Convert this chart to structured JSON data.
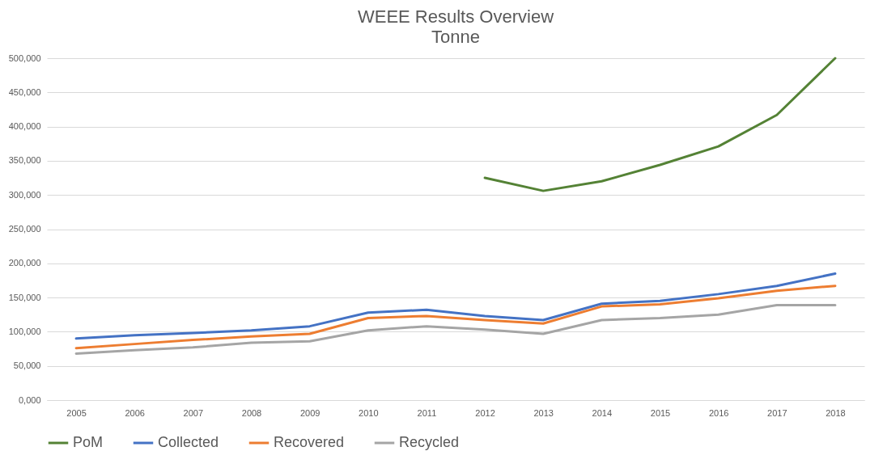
{
  "chart_data": {
    "type": "line",
    "title": "WEEE Results Overview",
    "subtitle": "Tonne",
    "categories": [
      "2005",
      "2006",
      "2007",
      "2008",
      "2009",
      "2010",
      "2011",
      "2012",
      "2013",
      "2014",
      "2015",
      "2016",
      "2017",
      "2018"
    ],
    "series": [
      {
        "name": "PoM",
        "color": "#548235",
        "values": [
          null,
          null,
          null,
          null,
          null,
          null,
          null,
          325000,
          306000,
          320000,
          344000,
          371000,
          417000,
          500000
        ]
      },
      {
        "name": "Collected",
        "color": "#4472c4",
        "values": [
          90000,
          95000,
          98000,
          102000,
          108000,
          128000,
          132000,
          123000,
          117000,
          141000,
          145000,
          155000,
          167000,
          185000
        ]
      },
      {
        "name": "Recovered",
        "color": "#ed7d31",
        "values": [
          76000,
          82000,
          88000,
          93000,
          97000,
          120000,
          123000,
          117000,
          112000,
          137000,
          140000,
          149000,
          160000,
          167000
        ]
      },
      {
        "name": "Recycled",
        "color": "#a5a5a5",
        "values": [
          68000,
          73000,
          77000,
          84000,
          86000,
          102000,
          108000,
          103000,
          97000,
          117000,
          120000,
          125000,
          139000,
          139000
        ]
      }
    ],
    "ylim": [
      0,
      500000
    ],
    "yticks": [
      {
        "value": 0,
        "label": "0,000"
      },
      {
        "value": 50000,
        "label": "50,000"
      },
      {
        "value": 100000,
        "label": "100,000"
      },
      {
        "value": 150000,
        "label": "150,000"
      },
      {
        "value": 200000,
        "label": "200,000"
      },
      {
        "value": 250000,
        "label": "250,000"
      },
      {
        "value": 300000,
        "label": "300,000"
      },
      {
        "value": 350000,
        "label": "350,000"
      },
      {
        "value": 400000,
        "label": "400,000"
      },
      {
        "value": 450000,
        "label": "450,000"
      },
      {
        "value": 500000,
        "label": "500,000"
      }
    ],
    "grid": "y",
    "legend": "bottom",
    "marker": "none",
    "line_style": "solid"
  }
}
